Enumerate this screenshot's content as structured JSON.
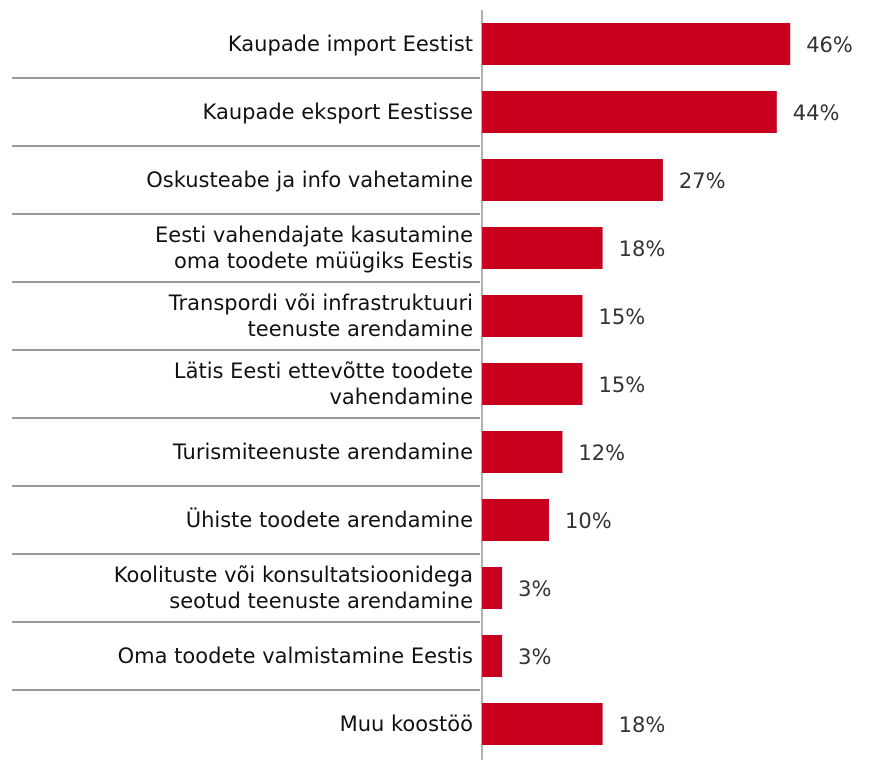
{
  "chart_data": {
    "type": "bar",
    "orientation": "horizontal",
    "categories": [
      "Kaupade import Eestist",
      "Kaupade eksport Eestisse",
      "Oskusteabe ja info vahetamine",
      "Eesti vahendajate kasutamine\noma toodete müügiks Eestis",
      "Transpordi või infrastruktuuri\nteenuste arendamine",
      "Lätis Eesti ettevõtte toodete\nvahendamine",
      "Turismiteenuste arendamine",
      "Ühiste toodete arendamine",
      "Koolituste või konsultatsioonidega\nseotud teenuste arendamine",
      "Oma toodete valmistamine Eestis",
      "Muu koostöö"
    ],
    "values": [
      46,
      44,
      27,
      18,
      15,
      15,
      12,
      10,
      3,
      3,
      18
    ],
    "value_labels": [
      "46%",
      "44%",
      "27%",
      "18%",
      "15%",
      "15%",
      "12%",
      "10%",
      "3%",
      "3%",
      "18%"
    ],
    "color": "#c8001e"
  }
}
